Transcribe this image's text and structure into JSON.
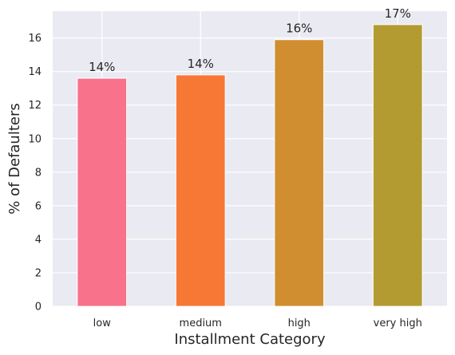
{
  "chart_data": {
    "type": "bar",
    "title": "",
    "xlabel": "Installment Category",
    "ylabel": "% of Defaulters",
    "categories": [
      "low",
      "medium",
      "high",
      "very high"
    ],
    "values": [
      13.6,
      13.8,
      15.9,
      16.8
    ],
    "data_labels": [
      "14%",
      "14%",
      "16%",
      "17%"
    ],
    "bar_colors": [
      "#f7728a",
      "#f77735",
      "#d08e31",
      "#b39b32"
    ],
    "ylim": [
      0,
      17.6
    ],
    "yticks": [
      0,
      2,
      4,
      6,
      8,
      10,
      12,
      14,
      16
    ],
    "grid": true,
    "background": "#eaeaf2",
    "legend": "none"
  }
}
